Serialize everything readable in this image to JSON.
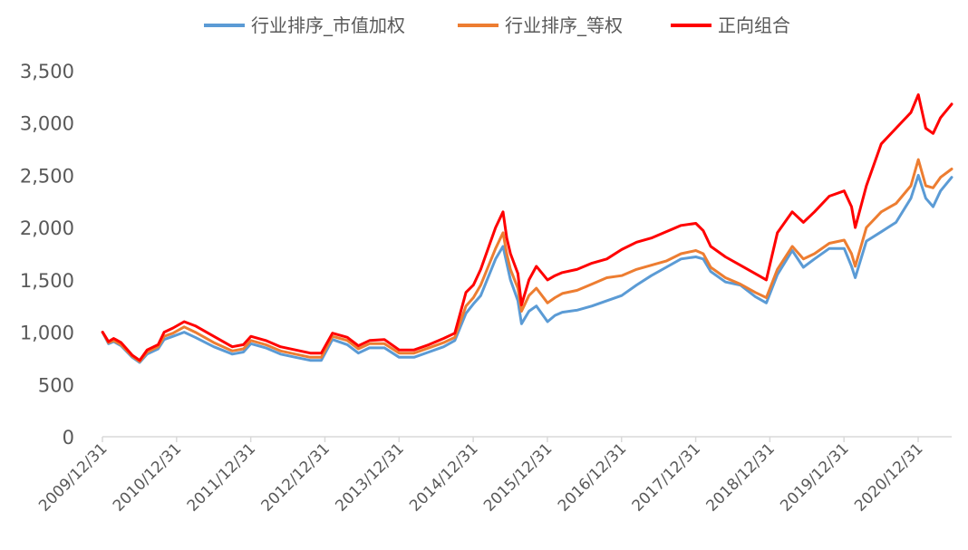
{
  "chart_data": {
    "type": "line",
    "title": "",
    "xlabel": "",
    "ylabel": "",
    "ylim": [
      0,
      3500
    ],
    "yticks": [
      0,
      500,
      1000,
      1500,
      2000,
      2500,
      3000,
      3500
    ],
    "ytick_labels": [
      "0",
      "500",
      "1,000",
      "1,500",
      "2,000",
      "2,500",
      "3,000",
      "3,500"
    ],
    "xlim": [
      2009.998,
      2021.45
    ],
    "xticks": [
      2009.998,
      2010.998,
      2011.998,
      2012.998,
      2013.998,
      2014.998,
      2015.998,
      2016.998,
      2017.998,
      2018.998,
      2019.998,
      2020.998
    ],
    "xtick_labels": [
      "2009/12/31",
      "2010/12/31",
      "2011/12/31",
      "2012/12/31",
      "2013/12/31",
      "2014/12/31",
      "2015/12/31",
      "2016/12/31",
      "2017/12/31",
      "2018/12/31",
      "2019/12/31",
      "2020/12/31"
    ],
    "legend_position": "top",
    "grid": false,
    "series": [
      {
        "name": "行业排序_市值加权",
        "color": "#5B9BD5",
        "x": [
          2010.0,
          2010.08,
          2010.15,
          2010.25,
          2010.4,
          2010.5,
          2010.6,
          2010.75,
          2010.83,
          2010.95,
          2011.1,
          2011.25,
          2011.5,
          2011.75,
          2011.9,
          2012.0,
          2012.2,
          2012.4,
          2012.6,
          2012.8,
          2012.95,
          2013.1,
          2013.3,
          2013.45,
          2013.6,
          2013.8,
          2014.0,
          2014.2,
          2014.4,
          2014.6,
          2014.75,
          2014.9,
          2015.0,
          2015.1,
          2015.3,
          2015.4,
          2015.45,
          2015.5,
          2015.6,
          2015.65,
          2015.75,
          2015.85,
          2016.0,
          2016.1,
          2016.2,
          2016.4,
          2016.6,
          2016.8,
          2017.0,
          2017.2,
          2017.4,
          2017.6,
          2017.8,
          2018.0,
          2018.1,
          2018.2,
          2018.4,
          2018.6,
          2018.8,
          2018.95,
          2019.1,
          2019.3,
          2019.45,
          2019.6,
          2019.8,
          2020.0,
          2020.1,
          2020.15,
          2020.3,
          2020.5,
          2020.7,
          2020.9,
          2021.0,
          2021.1,
          2021.2,
          2021.3,
          2021.45
        ],
        "values": [
          1000,
          890,
          910,
          870,
          760,
          710,
          790,
          840,
          930,
          960,
          1000,
          950,
          860,
          790,
          810,
          890,
          850,
          790,
          760,
          730,
          730,
          930,
          880,
          800,
          850,
          850,
          760,
          760,
          810,
          860,
          920,
          1180,
          1270,
          1350,
          1700,
          1820,
          1660,
          1500,
          1300,
          1080,
          1200,
          1250,
          1100,
          1160,
          1190,
          1210,
          1250,
          1300,
          1350,
          1450,
          1540,
          1620,
          1700,
          1720,
          1700,
          1580,
          1480,
          1450,
          1340,
          1280,
          1550,
          1780,
          1620,
          1700,
          1800,
          1800,
          1630,
          1520,
          1870,
          1960,
          2050,
          2280,
          2500,
          2280,
          2200,
          2350,
          2480
        ]
      },
      {
        "name": "行业排序_等权",
        "color": "#ED7D31",
        "x": [
          2010.0,
          2010.08,
          2010.15,
          2010.25,
          2010.4,
          2010.5,
          2010.6,
          2010.75,
          2010.83,
          2010.95,
          2011.1,
          2011.25,
          2011.5,
          2011.75,
          2011.9,
          2012.0,
          2012.2,
          2012.4,
          2012.6,
          2012.8,
          2012.95,
          2013.1,
          2013.3,
          2013.45,
          2013.6,
          2013.8,
          2014.0,
          2014.2,
          2014.4,
          2014.6,
          2014.75,
          2014.9,
          2015.0,
          2015.1,
          2015.3,
          2015.4,
          2015.45,
          2015.5,
          2015.6,
          2015.65,
          2015.75,
          2015.85,
          2016.0,
          2016.1,
          2016.2,
          2016.4,
          2016.6,
          2016.8,
          2017.0,
          2017.2,
          2017.4,
          2017.6,
          2017.8,
          2018.0,
          2018.1,
          2018.2,
          2018.4,
          2018.6,
          2018.8,
          2018.95,
          2019.1,
          2019.3,
          2019.45,
          2019.6,
          2019.8,
          2020.0,
          2020.1,
          2020.15,
          2020.3,
          2020.5,
          2020.7,
          2020.9,
          2021.0,
          2021.1,
          2021.2,
          2021.3,
          2021.45
        ],
        "values": [
          1000,
          900,
          920,
          880,
          770,
          720,
          810,
          860,
          960,
          990,
          1050,
          1000,
          900,
          820,
          840,
          920,
          880,
          820,
          790,
          760,
          760,
          960,
          920,
          840,
          890,
          890,
          800,
          800,
          850,
          900,
          950,
          1250,
          1330,
          1450,
          1800,
          1950,
          1750,
          1600,
          1420,
          1200,
          1350,
          1420,
          1280,
          1330,
          1370,
          1400,
          1460,
          1520,
          1540,
          1600,
          1640,
          1680,
          1750,
          1780,
          1750,
          1620,
          1520,
          1460,
          1380,
          1330,
          1600,
          1820,
          1700,
          1750,
          1850,
          1880,
          1750,
          1630,
          2000,
          2150,
          2230,
          2400,
          2650,
          2400,
          2380,
          2480,
          2560
        ]
      },
      {
        "name": "正向组合",
        "color": "#FF0000",
        "x": [
          2010.0,
          2010.08,
          2010.15,
          2010.25,
          2010.4,
          2010.5,
          2010.6,
          2010.75,
          2010.83,
          2010.95,
          2011.1,
          2011.25,
          2011.5,
          2011.75,
          2011.9,
          2012.0,
          2012.2,
          2012.4,
          2012.6,
          2012.8,
          2012.95,
          2013.1,
          2013.3,
          2013.45,
          2013.6,
          2013.8,
          2014.0,
          2014.2,
          2014.4,
          2014.6,
          2014.75,
          2014.9,
          2015.0,
          2015.1,
          2015.3,
          2015.4,
          2015.45,
          2015.5,
          2015.6,
          2015.65,
          2015.75,
          2015.85,
          2016.0,
          2016.1,
          2016.2,
          2016.4,
          2016.6,
          2016.8,
          2017.0,
          2017.2,
          2017.4,
          2017.6,
          2017.8,
          2018.0,
          2018.1,
          2018.2,
          2018.4,
          2018.6,
          2018.8,
          2018.95,
          2019.1,
          2019.3,
          2019.45,
          2019.6,
          2019.8,
          2020.0,
          2020.1,
          2020.15,
          2020.3,
          2020.5,
          2020.7,
          2020.9,
          2021.0,
          2021.1,
          2021.2,
          2021.3,
          2021.45
        ],
        "values": [
          1000,
          910,
          940,
          900,
          780,
          730,
          830,
          880,
          1000,
          1040,
          1100,
          1060,
          960,
          860,
          880,
          960,
          920,
          860,
          830,
          800,
          800,
          990,
          950,
          870,
          920,
          930,
          830,
          830,
          880,
          940,
          990,
          1380,
          1450,
          1600,
          2000,
          2150,
          1900,
          1750,
          1560,
          1260,
          1500,
          1630,
          1500,
          1540,
          1570,
          1600,
          1660,
          1700,
          1790,
          1860,
          1900,
          1960,
          2020,
          2040,
          1970,
          1820,
          1720,
          1640,
          1560,
          1500,
          1950,
          2150,
          2050,
          2150,
          2300,
          2350,
          2200,
          2000,
          2400,
          2800,
          2950,
          3100,
          3270,
          2950,
          2900,
          3050,
          3180
        ]
      }
    ]
  }
}
